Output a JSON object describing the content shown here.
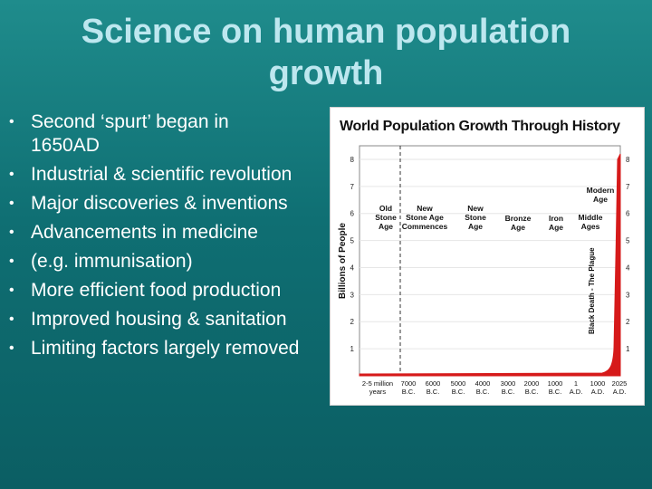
{
  "slide": {
    "title_line1": "Science on human population",
    "title_line2": "growth",
    "bullets": [
      {
        "text": "Second ‘spurt’ began in"
      },
      {
        "text": "1650AD",
        "continuation": true
      },
      {
        "text": "Industrial & scientific revolution"
      },
      {
        "text": "Major discoveries & inventions"
      },
      {
        "text": "Advancements in medicine"
      },
      {
        "text": "(e.g. immunisation)"
      },
      {
        "text": "More efficient food production"
      },
      {
        "text": "Improved housing & sanitation"
      },
      {
        "text": "Limiting factors largely removed"
      }
    ],
    "bullet_glyph": "•"
  },
  "figure": {
    "title": "World Population Growth Through History",
    "ylabel": "Billions of People",
    "yticks": [
      "1",
      "2",
      "3",
      "4",
      "5",
      "6",
      "7",
      "8"
    ],
    "era_labels": [
      {
        "lines": [
          "Old",
          "Stone",
          "Age"
        ]
      },
      {
        "lines": [
          "New",
          "Stone Age",
          "Commences"
        ]
      },
      {
        "lines": [
          "New",
          "Stone",
          "Age"
        ]
      },
      {
        "lines": [
          "Bronze",
          "Age"
        ]
      },
      {
        "lines": [
          "Iron",
          "Age"
        ]
      },
      {
        "lines": [
          "Middle",
          "Ages"
        ]
      },
      {
        "lines": [
          "Modern",
          "Age"
        ]
      }
    ],
    "plague_label": "Black Death - The Plague",
    "xticks": [
      {
        "top": "2-5 million",
        "bottom": "years"
      },
      {
        "top": "7000",
        "bottom": "B.C."
      },
      {
        "top": "6000",
        "bottom": "B.C."
      },
      {
        "top": "5000",
        "bottom": "B.C."
      },
      {
        "top": "4000",
        "bottom": "B.C."
      },
      {
        "top": "3000",
        "bottom": "B.C."
      },
      {
        "top": "2000",
        "bottom": "B.C."
      },
      {
        "top": "1000",
        "bottom": "B.C."
      },
      {
        "top": "1",
        "bottom": "A.D."
      },
      {
        "top": "1000",
        "bottom": "A.D."
      },
      {
        "top": "2025",
        "bottom": "A.D."
      }
    ],
    "colors": {
      "curve": "#d61a1a",
      "grid": "#e6e6e6",
      "dashed": "#333333"
    }
  }
}
